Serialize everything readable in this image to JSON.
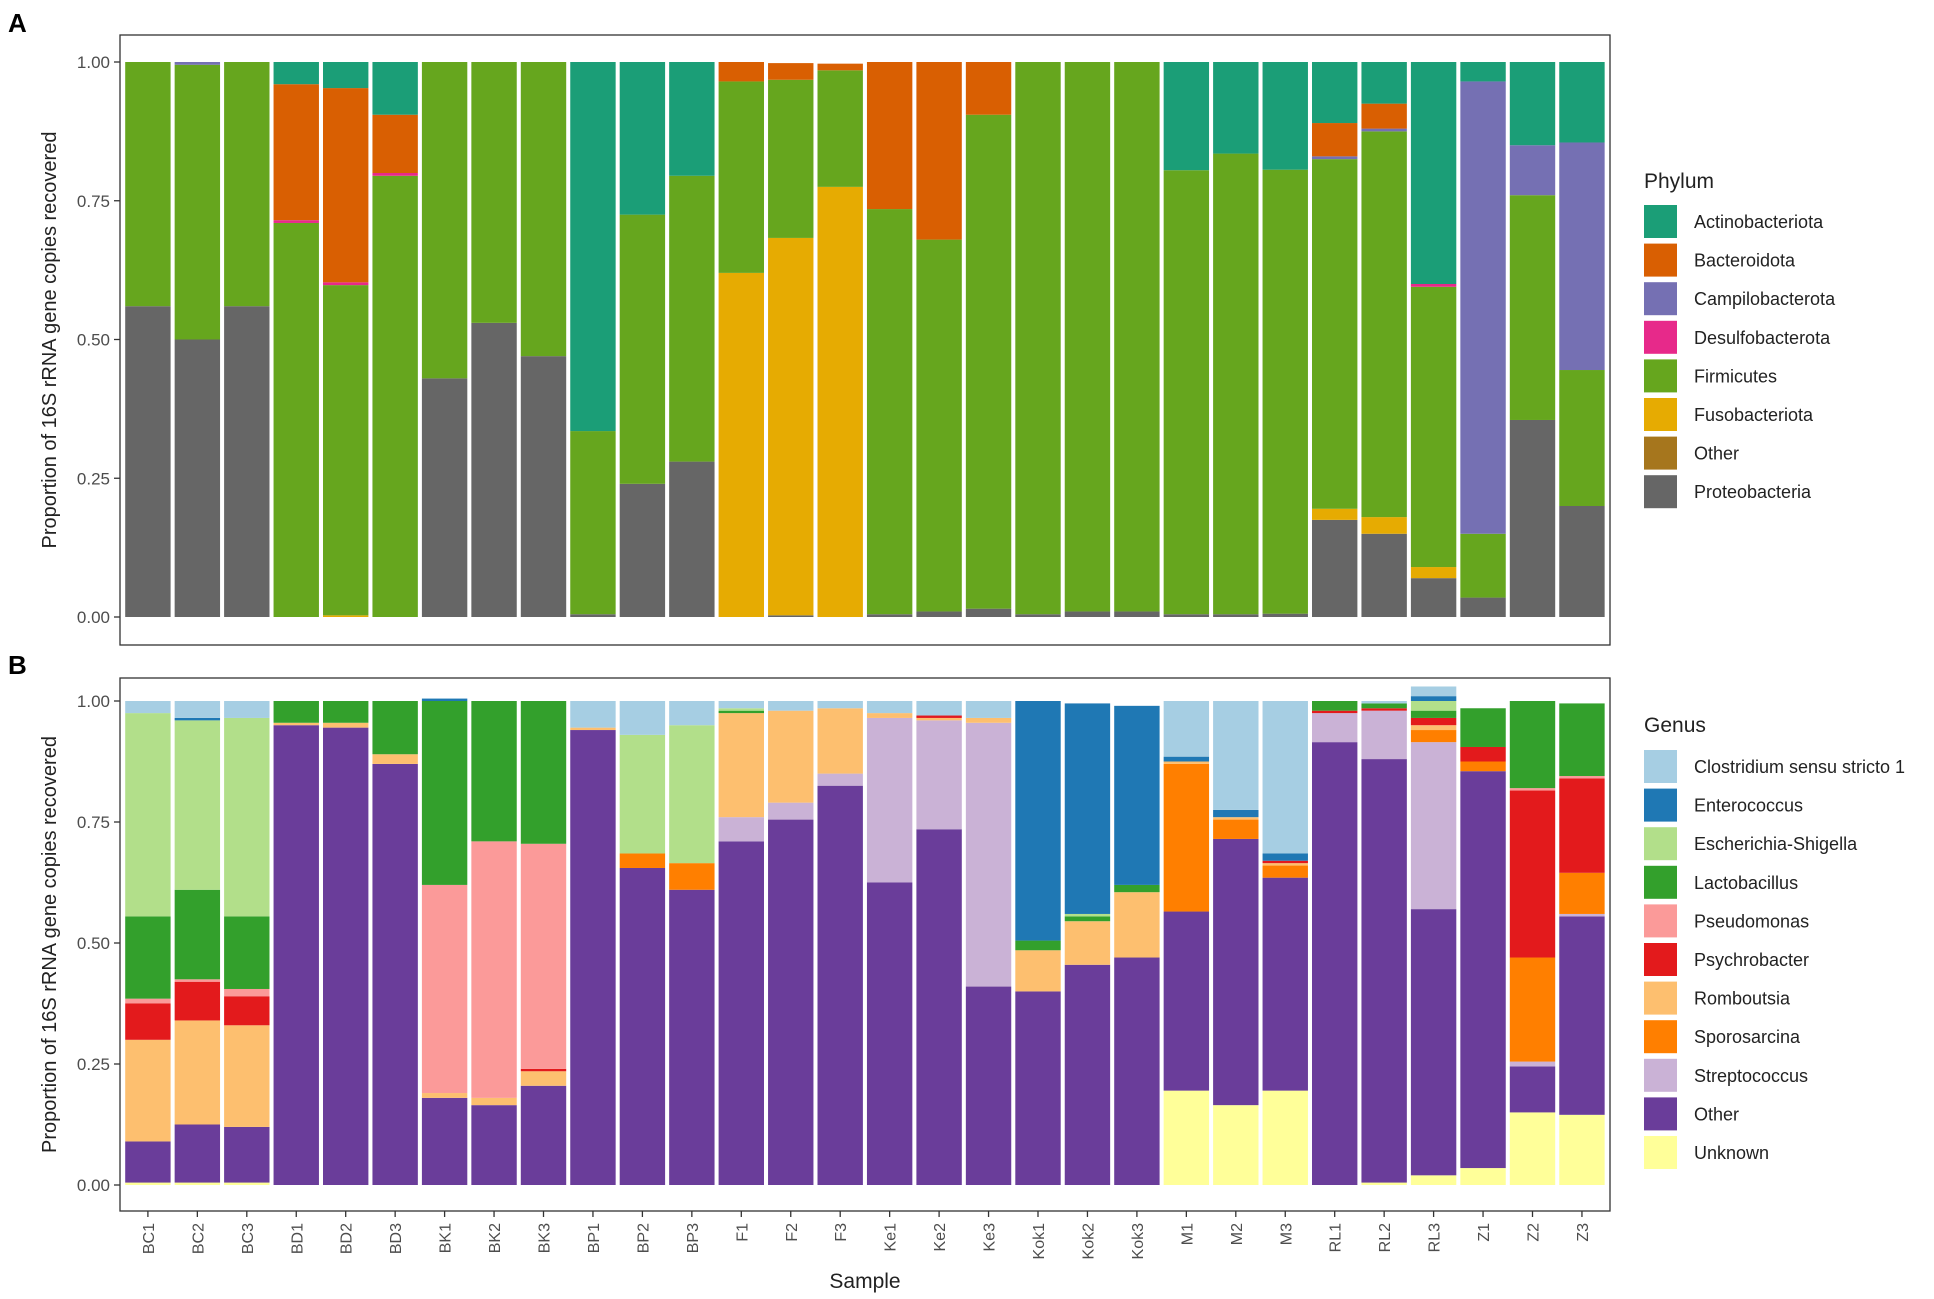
{
  "chart_data": [
    {
      "panel_label": "A",
      "type": "bar",
      "stacked": true,
      "ylabel": "Proportion of 16S rRNA gene copies recovered",
      "xlabel": "",
      "ylim": [
        0,
        1
      ],
      "yticks": [
        "0.00",
        "0.25",
        "0.50",
        "0.75",
        "1.00"
      ],
      "legend_title": "Phylum",
      "legend_position": "right",
      "categories": [
        "BC1",
        "BC2",
        "BC3",
        "BD1",
        "BD2",
        "BD3",
        "BK1",
        "BK2",
        "BK3",
        "BP1",
        "BP2",
        "BP3",
        "F1",
        "F2",
        "F3",
        "Ke1",
        "Ke2",
        "Ke3",
        "Kok1",
        "Kok2",
        "Kok3",
        "M1",
        "M2",
        "M3",
        "RL1",
        "RL2",
        "RL3",
        "Z1",
        "Z2",
        "Z3"
      ],
      "series": [
        {
          "name": "Proteobacteria",
          "color": "#666666",
          "values": [
            0.56,
            0.5,
            0.56,
            0,
            0,
            0,
            0.43,
            0.53,
            0.47,
            0.005,
            0.24,
            0.28,
            0,
            0.003,
            0,
            0.005,
            0.01,
            0.015,
            0.005,
            0.01,
            0.01,
            0.005,
            0.005,
            0.006,
            0.175,
            0.15,
            0.07,
            0.035,
            0.355,
            0.2
          ]
        },
        {
          "name": "Other",
          "color": "#a6761d",
          "values": [
            0,
            0,
            0,
            0,
            0,
            0,
            0,
            0,
            0,
            0,
            0,
            0,
            0,
            0,
            0,
            0,
            0,
            0,
            0,
            0,
            0,
            0,
            0,
            0,
            0,
            0,
            0,
            0,
            0,
            0
          ]
        },
        {
          "name": "Fusobacteriota",
          "color": "#e6ab02",
          "values": [
            0,
            0,
            0,
            0,
            0.003,
            0,
            0,
            0,
            0,
            0,
            0,
            0,
            0.62,
            0.68,
            0.775,
            0,
            0,
            0,
            0,
            0,
            0,
            0,
            0,
            0,
            0.02,
            0.03,
            0.02,
            0,
            0,
            0
          ]
        },
        {
          "name": "Firmicutes",
          "color": "#66a61e",
          "values": [
            0.44,
            0.495,
            0.44,
            0.71,
            0.595,
            0.795,
            0.57,
            0.47,
            0.53,
            0.33,
            0.485,
            0.515,
            0.345,
            0.285,
            0.21,
            0.73,
            0.67,
            0.89,
            0.995,
            0.99,
            0.99,
            0.8,
            0.83,
            0.8,
            0.63,
            0.695,
            0.505,
            0.115,
            0.405,
            0.245
          ]
        },
        {
          "name": "Desulfobacterota",
          "color": "#e7298a",
          "values": [
            0,
            0,
            0,
            0.005,
            0.005,
            0.005,
            0,
            0,
            0,
            0,
            0,
            0,
            0,
            0,
            0,
            0,
            0,
            0,
            0,
            0,
            0,
            0,
            0,
            0,
            0,
            0,
            0.005,
            0,
            0,
            0
          ]
        },
        {
          "name": "Campilobacterota",
          "color": "#7570b3",
          "values": [
            0,
            0.005,
            0,
            0,
            0,
            0,
            0,
            0,
            0,
            0,
            0,
            0,
            0,
            0,
            0,
            0,
            0,
            0,
            0,
            0,
            0,
            0,
            0,
            0,
            0.005,
            0.005,
            0,
            0.815,
            0.09,
            0.41
          ]
        },
        {
          "name": "Bacteroidota",
          "color": "#d95f02",
          "values": [
            0,
            0,
            0,
            0.245,
            0.35,
            0.105,
            0,
            0,
            0,
            0,
            0,
            0,
            0.035,
            0.03,
            0.012,
            0.265,
            0.32,
            0.095,
            0,
            0,
            0,
            0,
            0,
            0,
            0.06,
            0.045,
            0,
            0,
            0,
            0
          ]
        },
        {
          "name": "Actinobacteriota",
          "color": "#1b9e77",
          "values": [
            0,
            0,
            0,
            0.04,
            0.047,
            0.095,
            0,
            0,
            0,
            0.665,
            0.275,
            0.205,
            0,
            0,
            0,
            0,
            0,
            0,
            0,
            0,
            0,
            0.195,
            0.165,
            0.194,
            0.11,
            0.075,
            0.4,
            0.035,
            0.15,
            0.145
          ]
        }
      ],
      "legend": [
        "Actinobacteriota",
        "Bacteroidota",
        "Campilobacterota",
        "Desulfobacterota",
        "Firmicutes",
        "Fusobacteriota",
        "Other",
        "Proteobacteria"
      ]
    },
    {
      "panel_label": "B",
      "type": "bar",
      "stacked": true,
      "ylabel": "Proportion of 16S rRNA gene copies recovered",
      "xlabel": "Sample",
      "ylim": [
        0,
        1
      ],
      "yticks": [
        "0.00",
        "0.25",
        "0.50",
        "0.75",
        "1.00"
      ],
      "legend_title": "Genus",
      "legend_position": "right",
      "categories": [
        "BC1",
        "BC2",
        "BC3",
        "BD1",
        "BD2",
        "BD3",
        "BK1",
        "BK2",
        "BK3",
        "BP1",
        "BP2",
        "BP3",
        "F1",
        "F2",
        "F3",
        "Ke1",
        "Ke2",
        "Ke3",
        "Kok1",
        "Kok2",
        "Kok3",
        "M1",
        "M2",
        "M3",
        "RL1",
        "RL2",
        "RL3",
        "Z1",
        "Z2",
        "Z3"
      ],
      "series": [
        {
          "name": "Unknown",
          "color": "#ffff99",
          "values": [
            0.005,
            0.005,
            0.005,
            0,
            0,
            0,
            0,
            0,
            0,
            0,
            0,
            0,
            0,
            0,
            0,
            0,
            0,
            0,
            0,
            0,
            0,
            0.195,
            0.165,
            0.195,
            0,
            0.005,
            0.02,
            0.035,
            0.15,
            0.145
          ]
        },
        {
          "name": "Other",
          "color": "#6a3d9a",
          "values": [
            0.085,
            0.12,
            0.115,
            0.95,
            0.945,
            0.87,
            0.18,
            0.165,
            0.205,
            0.94,
            0.655,
            0.61,
            0.71,
            0.755,
            0.825,
            0.625,
            0.735,
            0.41,
            0.4,
            0.455,
            0.47,
            0.37,
            0.55,
            0.44,
            0.915,
            0.875,
            0.55,
            0.82,
            0.095,
            0.41
          ]
        },
        {
          "name": "Streptococcus",
          "color": "#cab2d6",
          "values": [
            0,
            0,
            0,
            0,
            0,
            0,
            0,
            0,
            0,
            0,
            0,
            0,
            0.05,
            0.035,
            0.025,
            0.34,
            0.225,
            0.545,
            0,
            0,
            0,
            0,
            0,
            0,
            0.06,
            0.1,
            0.345,
            0,
            0.01,
            0.005
          ]
        },
        {
          "name": "Sporosarcina",
          "color": "#ff7f00",
          "values": [
            0,
            0,
            0,
            0,
            0,
            0,
            0,
            0,
            0,
            0,
            0.03,
            0.055,
            0,
            0,
            0,
            0,
            0,
            0,
            0,
            0,
            0,
            0.305,
            0.04,
            0.025,
            0,
            0,
            0.025,
            0.02,
            0.215,
            0.085
          ]
        },
        {
          "name": "Romboutsia",
          "color": "#fdbf6f",
          "values": [
            0.21,
            0.215,
            0.21,
            0.005,
            0.01,
            0.02,
            0.01,
            0.015,
            0.03,
            0.005,
            0,
            0,
            0.215,
            0.19,
            0.135,
            0.01,
            0.005,
            0.01,
            0.085,
            0.09,
            0.135,
            0.005,
            0.005,
            0.005,
            0,
            0,
            0.01,
            0,
            0,
            0
          ]
        },
        {
          "name": "Psychrobacter",
          "color": "#e31a1c",
          "values": [
            0.075,
            0.08,
            0.06,
            0,
            0,
            0,
            0,
            0,
            0.005,
            0,
            0,
            0,
            0,
            0,
            0,
            0,
            0.005,
            0,
            0,
            0,
            0,
            0,
            0,
            0.005,
            0.005,
            0.005,
            0.015,
            0.03,
            0.345,
            0.195
          ]
        },
        {
          "name": "Pseudomonas",
          "color": "#fb9a99",
          "values": [
            0.01,
            0.005,
            0.015,
            0,
            0,
            0,
            0.43,
            0.53,
            0.465,
            0,
            0,
            0,
            0,
            0,
            0,
            0,
            0,
            0,
            0,
            0,
            0,
            0,
            0,
            0,
            0,
            0,
            0,
            0,
            0.005,
            0.005
          ]
        },
        {
          "name": "Lactobacillus",
          "color": "#33a02c",
          "values": [
            0.17,
            0.185,
            0.15,
            0.045,
            0.045,
            0.11,
            0.38,
            0.29,
            0.295,
            0,
            0,
            0,
            0.005,
            0,
            0,
            0,
            0,
            0,
            0.02,
            0.01,
            0.015,
            0,
            0,
            0,
            0.02,
            0.01,
            0.015,
            0.08,
            0.18,
            0.15
          ]
        },
        {
          "name": "Escherichia-Shigella",
          "color": "#b2df8a",
          "values": [
            0.42,
            0.35,
            0.41,
            0,
            0,
            0,
            0,
            0,
            0,
            0,
            0.245,
            0.285,
            0.005,
            0,
            0,
            0,
            0,
            0,
            0,
            0.005,
            0,
            0,
            0,
            0,
            0,
            0,
            0.02,
            0,
            0,
            0
          ]
        },
        {
          "name": "Enterococcus",
          "color": "#1f78b4",
          "values": [
            0,
            0.005,
            0,
            0,
            0,
            0,
            0.005,
            0,
            0,
            0,
            0,
            0,
            0,
            0,
            0,
            0,
            0,
            0,
            0.495,
            0.435,
            0.37,
            0.01,
            0.015,
            0.015,
            0,
            0,
            0.01,
            0,
            0,
            0
          ]
        },
        {
          "name": "Clostridium sensu stricto 1",
          "color": "#a6cee3",
          "values": [
            0.025,
            0.035,
            0.035,
            0,
            0,
            0,
            0,
            0,
            0,
            0.055,
            0.07,
            0.05,
            0.015,
            0.02,
            0.015,
            0.025,
            0.03,
            0.035,
            0,
            0,
            0,
            0.115,
            0.225,
            0.315,
            0,
            0.005,
            0.02,
            0,
            0,
            0
          ]
        }
      ],
      "legend": [
        "Clostridium sensu stricto 1",
        "Enterococcus",
        "Escherichia-Shigella",
        "Lactobacillus",
        "Pseudomonas",
        "Psychrobacter",
        "Romboutsia",
        "Sporosarcina",
        "Streptococcus",
        "Other",
        "Unknown"
      ]
    }
  ]
}
